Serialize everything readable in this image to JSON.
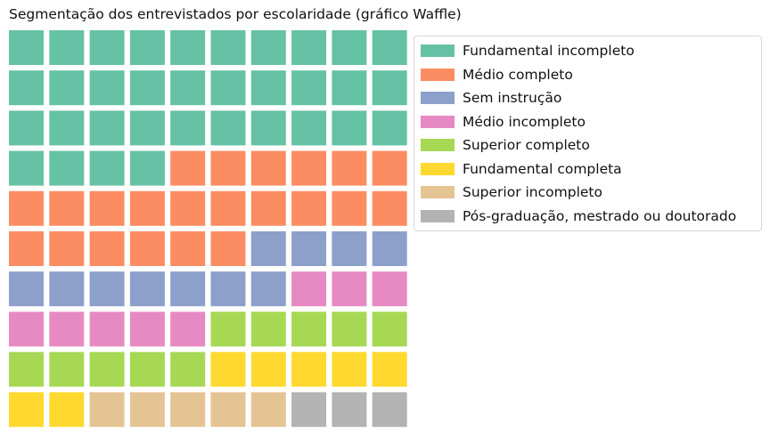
{
  "chart_data": {
    "type": "waffle",
    "title": "Segmentação dos entrevistados por escolaridade (gráfico Waffle)",
    "grid": {
      "rows": 10,
      "columns": 10
    },
    "fill_order": "row-major from top-left",
    "categories": [
      {
        "label": "Fundamental incompleto",
        "value": 34,
        "color": "#66c2a5"
      },
      {
        "label": "Médio completo",
        "value": 22,
        "color": "#fc8d62"
      },
      {
        "label": "Sem instrução",
        "value": 11,
        "color": "#8da0cb"
      },
      {
        "label": "Médio incompleto",
        "value": 8,
        "color": "#e78ac3"
      },
      {
        "label": "Superior completo",
        "value": 10,
        "color": "#a6d854"
      },
      {
        "label": "Fundamental completa",
        "value": 7,
        "color": "#ffd92f"
      },
      {
        "label": "Superior incompleto",
        "value": 5,
        "color": "#e5c494"
      },
      {
        "label": "Pós-graduação, mestrado ou doutorado",
        "value": 3,
        "color": "#b3b3b3"
      }
    ],
    "legend_position": "upper-right outside"
  }
}
